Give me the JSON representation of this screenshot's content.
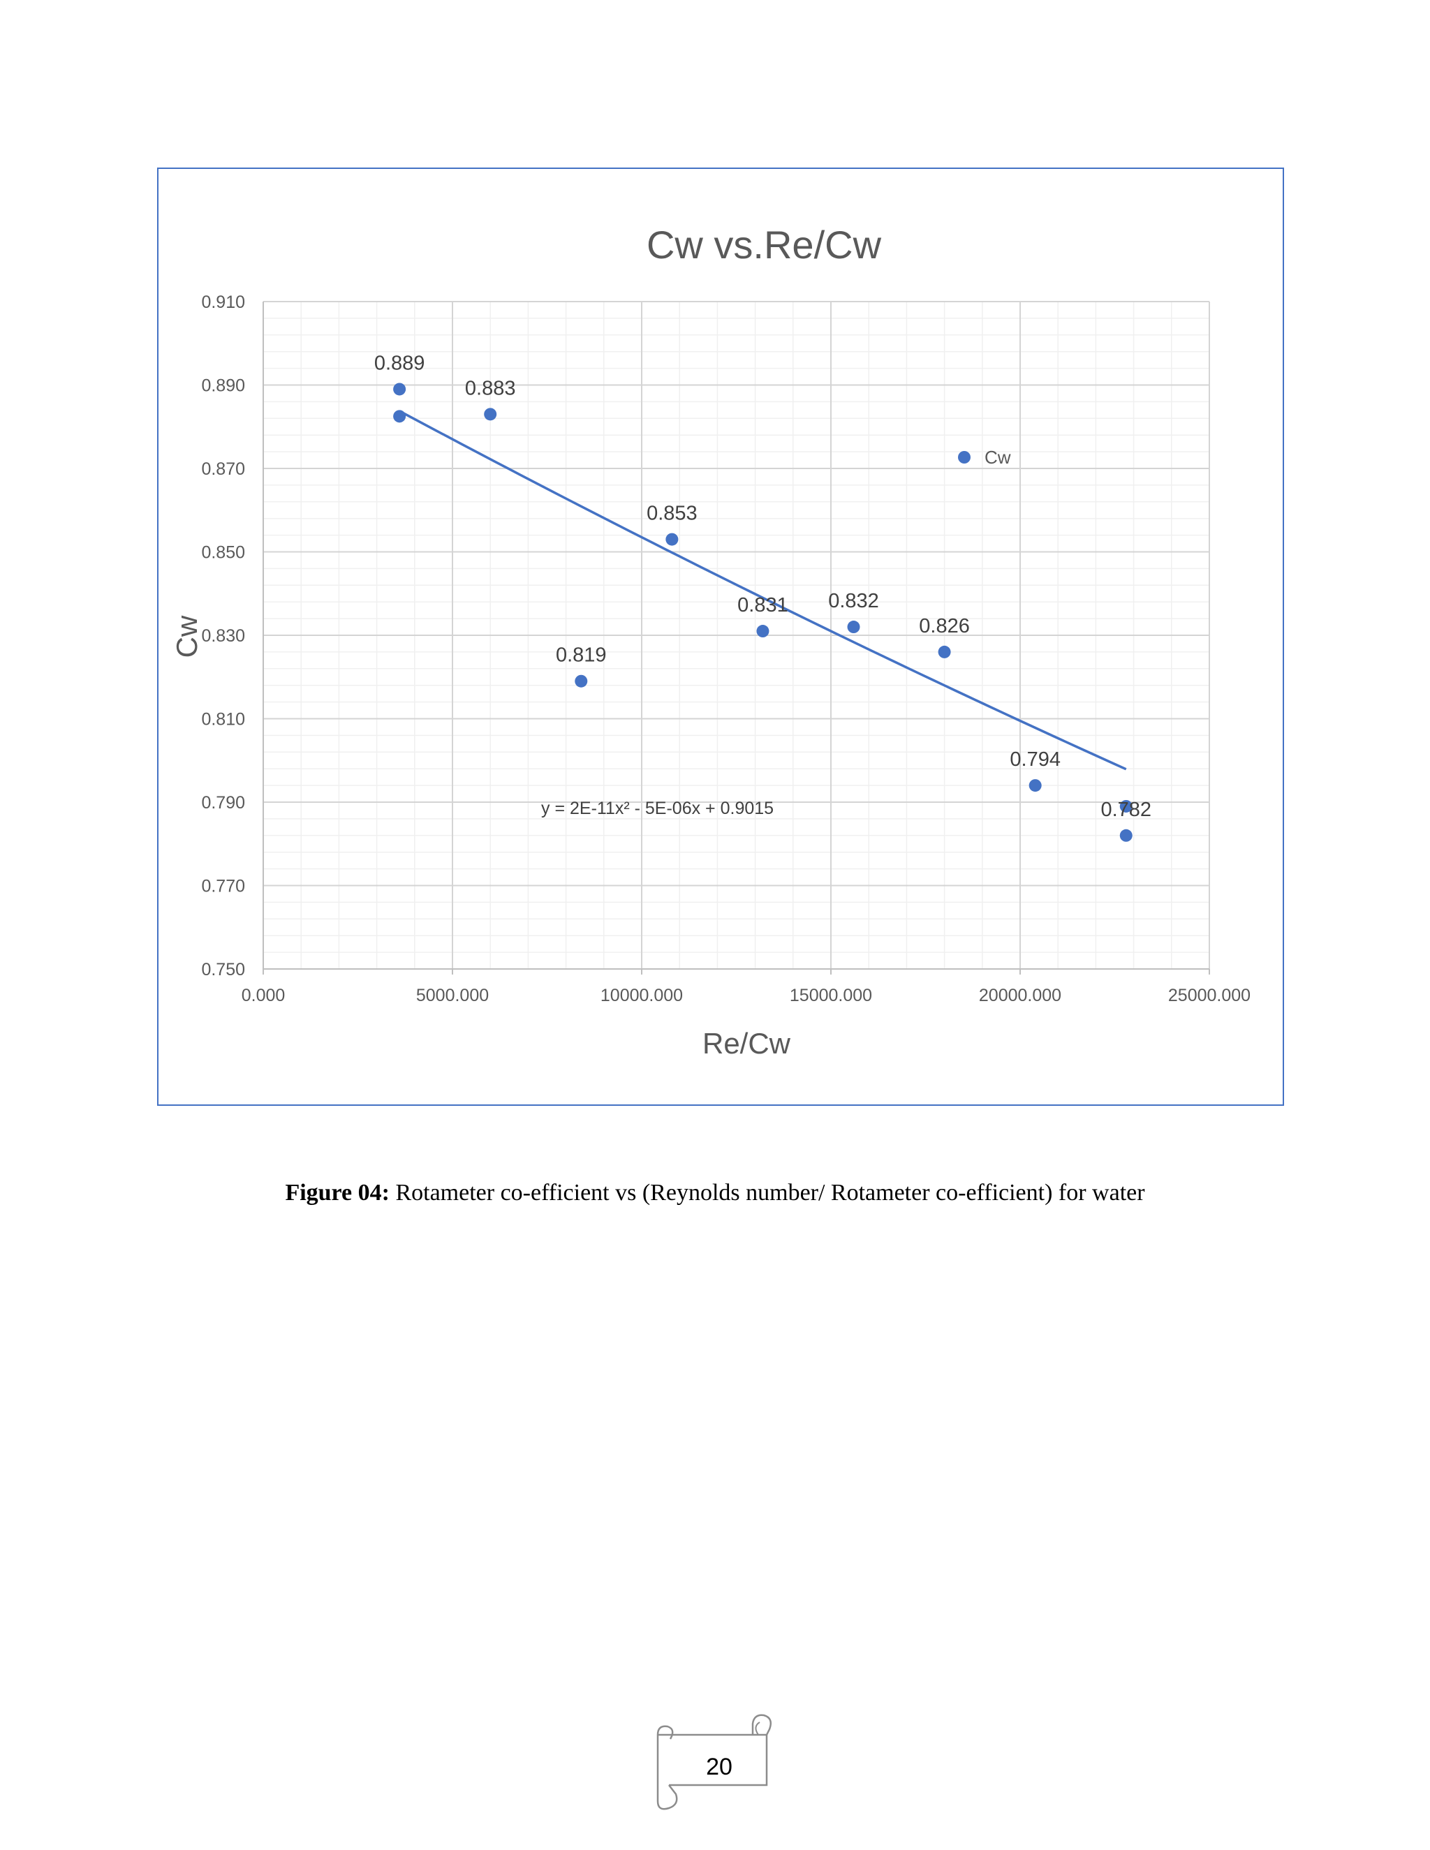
{
  "chart_data": {
    "type": "scatter",
    "title": "Cw vs.Re/Cw",
    "xlabel": "Re/Cw",
    "ylabel": "Cw",
    "xlim": [
      0,
      25000
    ],
    "ylim": [
      0.75,
      0.91
    ],
    "x_ticks": [
      "0.000",
      "5000.000",
      "10000.000",
      "15000.000",
      "20000.000",
      "25000.000"
    ],
    "y_ticks": [
      "0.750",
      "0.770",
      "0.790",
      "0.810",
      "0.830",
      "0.850",
      "0.870",
      "0.890",
      "0.910"
    ],
    "grid": true,
    "legend_position": "upper-right inside plot",
    "marker_color": "#4472c4",
    "series": [
      {
        "name": "Cw",
        "points": [
          {
            "x": 3600,
            "y": 0.889,
            "label": "0.889"
          },
          {
            "x": 3600,
            "y": 0.8825,
            "label": ""
          },
          {
            "x": 6000,
            "y": 0.883,
            "label": "0.883"
          },
          {
            "x": 8400,
            "y": 0.819,
            "label": "0.819"
          },
          {
            "x": 10800,
            "y": 0.853,
            "label": "0.853"
          },
          {
            "x": 13200,
            "y": 0.831,
            "label": "0.831"
          },
          {
            "x": 15600,
            "y": 0.832,
            "label": "0.832"
          },
          {
            "x": 18000,
            "y": 0.826,
            "label": "0.826"
          },
          {
            "x": 20400,
            "y": 0.794,
            "label": "0.794"
          },
          {
            "x": 22800,
            "y": 0.789,
            "label": ""
          },
          {
            "x": 22800,
            "y": 0.782,
            "label": "0.782"
          }
        ]
      }
    ],
    "trendline": {
      "type": "polynomial",
      "equation": "y = 2E-11x² - 5E-06x + 0.9015",
      "coefficients": [
        2e-11,
        -5e-06,
        0.9015
      ],
      "x_range": [
        3600,
        22800
      ],
      "color": "#4472c4"
    }
  },
  "caption": {
    "label": "Figure 04:",
    "text": " Rotameter co-efficient vs (Reynolds number/ Rotameter co-efficient) for water"
  },
  "page_number": "20"
}
